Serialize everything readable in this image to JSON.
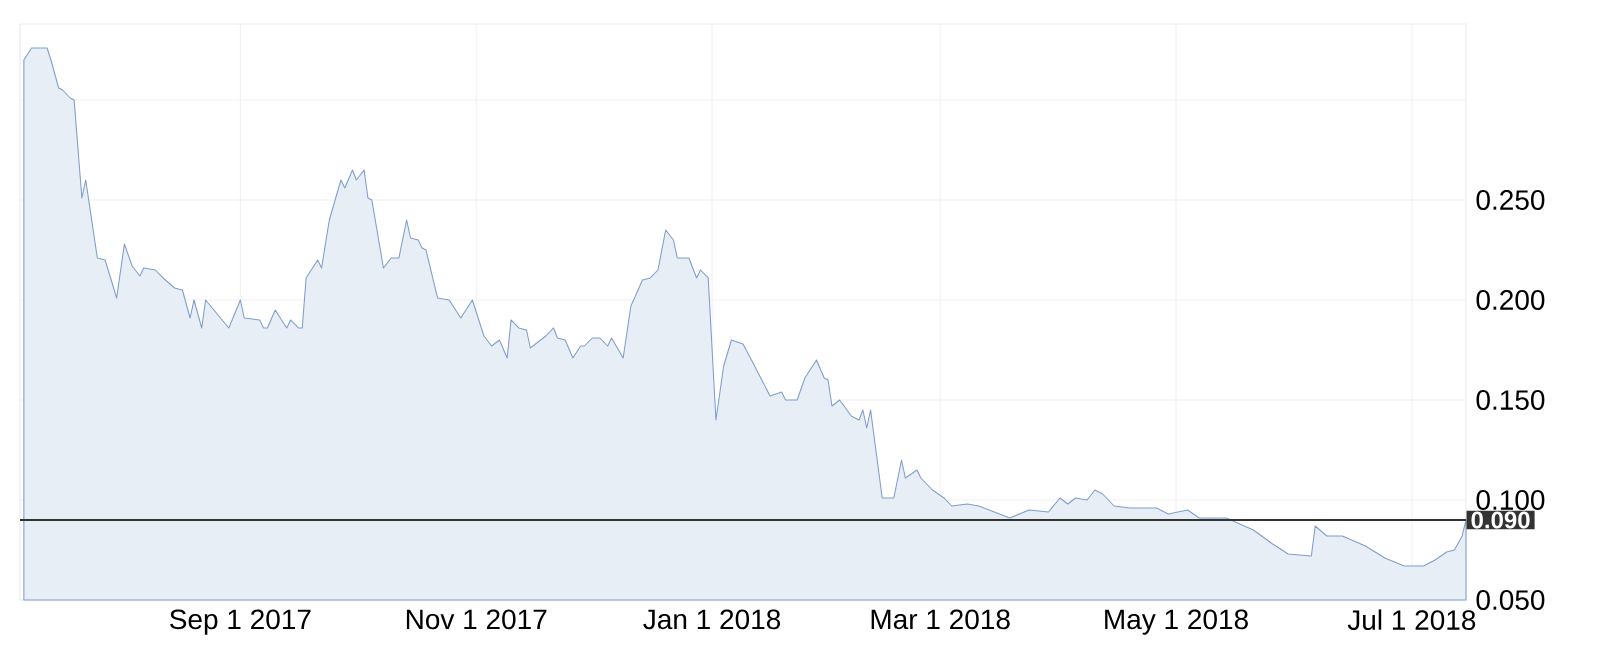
{
  "chart_data": {
    "type": "area",
    "color": "#7f9ecb",
    "x": [
      "2017-07-07",
      "2017-07-09",
      "2017-07-13",
      "2017-07-14",
      "2017-07-16",
      "2017-07-17",
      "2017-07-19",
      "2017-07-20",
      "2017-07-22",
      "2017-07-23",
      "2017-07-26",
      "2017-07-28",
      "2017-07-31",
      "2017-08-02",
      "2017-08-04",
      "2017-08-06",
      "2017-08-07",
      "2017-08-10",
      "2017-08-12",
      "2017-08-15",
      "2017-08-17",
      "2017-08-19",
      "2017-08-20",
      "2017-08-22",
      "2017-08-23",
      "2017-08-29",
      "2017-09-01",
      "2017-09-02",
      "2017-09-06",
      "2017-09-07",
      "2017-09-08",
      "2017-09-10",
      "2017-09-13",
      "2017-09-14",
      "2017-09-16",
      "2017-09-17",
      "2017-09-18",
      "2017-09-21",
      "2017-09-22",
      "2017-09-24",
      "2017-09-27",
      "2017-09-28",
      "2017-09-30",
      "2017-10-01",
      "2017-10-03",
      "2017-10-04",
      "2017-10-05",
      "2017-10-08",
      "2017-10-10",
      "2017-10-12",
      "2017-10-14",
      "2017-10-15",
      "2017-10-17",
      "2017-10-18",
      "2017-10-19",
      "2017-10-22",
      "2017-10-25",
      "2017-10-28",
      "2017-10-31",
      "2017-11-03",
      "2017-11-05",
      "2017-11-07",
      "2017-11-09",
      "2017-11-10",
      "2017-11-12",
      "2017-11-14",
      "2017-11-15",
      "2017-11-19",
      "2017-11-21",
      "2017-11-22",
      "2017-11-24",
      "2017-11-26",
      "2017-11-28",
      "2017-11-29",
      "2017-12-01",
      "2017-12-03",
      "2017-12-05",
      "2017-12-06",
      "2017-12-09",
      "2017-12-11",
      "2017-12-14",
      "2017-12-16",
      "2017-12-18",
      "2017-12-20",
      "2017-12-22",
      "2017-12-23",
      "2017-12-26",
      "2017-12-28",
      "2017-12-29",
      "2017-12-31",
      "2018-01-02",
      "2018-01-04",
      "2018-01-06",
      "2018-01-09",
      "2018-01-12",
      "2018-01-16",
      "2018-01-19",
      "2018-01-20",
      "2018-01-23",
      "2018-01-25",
      "2018-01-28",
      "2018-01-30",
      "2018-01-31",
      "2018-02-01",
      "2018-02-03",
      "2018-02-06",
      "2018-02-08",
      "2018-02-09",
      "2018-02-10",
      "2018-02-11",
      "2018-02-14",
      "2018-02-17",
      "2018-02-19",
      "2018-02-20",
      "2018-02-23",
      "2018-02-24",
      "2018-02-27",
      "2018-03-02",
      "2018-03-04",
      "2018-03-08",
      "2018-03-11",
      "2018-03-19",
      "2018-03-24",
      "2018-03-29",
      "2018-04-01",
      "2018-04-03",
      "2018-04-05",
      "2018-04-08",
      "2018-04-10",
      "2018-04-12",
      "2018-04-15",
      "2018-04-19",
      "2018-04-26",
      "2018-04-29",
      "2018-05-04",
      "2018-05-07",
      "2018-05-14",
      "2018-05-21",
      "2018-05-26",
      "2018-05-30",
      "2018-06-05",
      "2018-06-06",
      "2018-06-09",
      "2018-06-13",
      "2018-06-19",
      "2018-06-24",
      "2018-06-29",
      "2018-07-04",
      "2018-07-07",
      "2018-07-10",
      "2018-07-12",
      "2018-07-14",
      "2018-07-15"
    ],
    "values": [
      0.32,
      0.326,
      0.326,
      0.32,
      0.306,
      0.305,
      0.301,
      0.3,
      0.251,
      0.26,
      0.221,
      0.22,
      0.201,
      0.228,
      0.217,
      0.212,
      0.216,
      0.215,
      0.211,
      0.206,
      0.205,
      0.191,
      0.2,
      0.186,
      0.2,
      0.186,
      0.2,
      0.191,
      0.19,
      0.186,
      0.186,
      0.195,
      0.186,
      0.19,
      0.186,
      0.186,
      0.211,
      0.22,
      0.216,
      0.24,
      0.26,
      0.256,
      0.265,
      0.26,
      0.265,
      0.251,
      0.25,
      0.216,
      0.221,
      0.221,
      0.24,
      0.231,
      0.23,
      0.226,
      0.225,
      0.201,
      0.2,
      0.191,
      0.2,
      0.182,
      0.177,
      0.18,
      0.171,
      0.19,
      0.186,
      0.185,
      0.176,
      0.182,
      0.186,
      0.181,
      0.18,
      0.171,
      0.177,
      0.177,
      0.181,
      0.181,
      0.177,
      0.181,
      0.171,
      0.197,
      0.21,
      0.211,
      0.215,
      0.235,
      0.23,
      0.221,
      0.221,
      0.211,
      0.215,
      0.211,
      0.14,
      0.167,
      0.18,
      0.178,
      0.167,
      0.152,
      0.154,
      0.15,
      0.15,
      0.161,
      0.17,
      0.161,
      0.16,
      0.147,
      0.15,
      0.142,
      0.14,
      0.145,
      0.136,
      0.145,
      0.101,
      0.101,
      0.12,
      0.111,
      0.115,
      0.111,
      0.105,
      0.101,
      0.097,
      0.098,
      0.097,
      0.091,
      0.095,
      0.094,
      0.101,
      0.098,
      0.101,
      0.1,
      0.105,
      0.103,
      0.097,
      0.096,
      0.096,
      0.093,
      0.095,
      0.091,
      0.091,
      0.085,
      0.078,
      0.073,
      0.072,
      0.087,
      0.082,
      0.082,
      0.077,
      0.071,
      0.067,
      0.067,
      0.07,
      0.074,
      0.075,
      0.082,
      0.09
    ],
    "xlim": [
      "2017-07-06",
      "2018-07-15"
    ],
    "xticks": [
      {
        "value": "2017-09-01",
        "label": "Sep 1 2017"
      },
      {
        "value": "2017-11-01",
        "label": "Nov 1 2017"
      },
      {
        "value": "2018-01-01",
        "label": "Jan 1 2018"
      },
      {
        "value": "2018-03-01",
        "label": "Mar 1 2018"
      },
      {
        "value": "2018-05-01",
        "label": "May 1 2018"
      },
      {
        "value": "2018-07-01",
        "label": "Jul 1 2018"
      }
    ],
    "ylim": [
      0.05,
      0.338
    ],
    "yticks": [
      {
        "value": 0.05,
        "label": "0.050"
      },
      {
        "value": 0.1,
        "label": "0.100"
      },
      {
        "value": 0.15,
        "label": "0.150"
      },
      {
        "value": 0.2,
        "label": "0.200"
      },
      {
        "value": 0.25,
        "label": "0.250"
      },
      {
        "value": 0.3,
        "label": null
      }
    ],
    "ref_lines": [
      {
        "axis": "y",
        "value": 0.09,
        "label": "0.090",
        "color": "#333333"
      }
    ],
    "grid": true
  }
}
